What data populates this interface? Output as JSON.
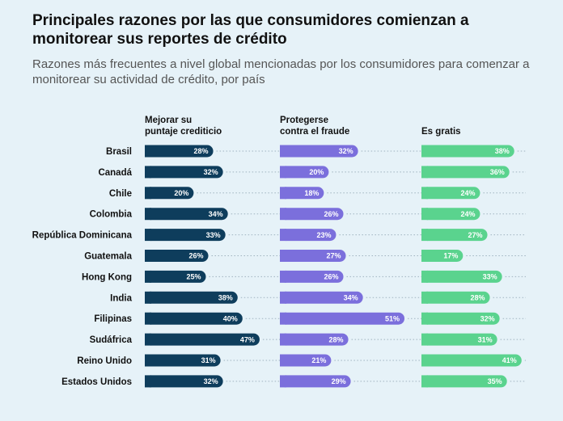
{
  "header": {
    "title": "Principales razones por las que consumidores comienzan a monitorear sus reportes de crédito",
    "subtitle": "Razones más frecuentes a nivel global mencionadas por los consumidores para comenzar a monitorear su actividad de crédito, por país"
  },
  "chart_data": {
    "type": "bar",
    "orientation": "horizontal",
    "title": "Principales razones por las que consumidores comienzan a monitorear sus reportes de crédito",
    "subtitle": "Razones más frecuentes a nivel global mencionadas por los consumidores para comenzar a monitorear su actividad de crédito, por país",
    "categories": [
      "Brasil",
      "Canadá",
      "Chile",
      "Colombia",
      "República Dominicana",
      "Guatemala",
      "Hong Kong",
      "India",
      "Filipinas",
      "Sudáfrica",
      "Reino Unido",
      "Estados Unidos"
    ],
    "unit": "%",
    "grid": false,
    "series": [
      {
        "name": "Mejorar su puntaje crediticio",
        "color": "#0e3d5c",
        "values": [
          28,
          32,
          20,
          34,
          33,
          26,
          25,
          38,
          40,
          47,
          31,
          32
        ]
      },
      {
        "name": "Protegerse contra el fraude",
        "color": "#7b6fdc",
        "values": [
          32,
          20,
          18,
          26,
          23,
          27,
          26,
          34,
          51,
          28,
          21,
          29
        ]
      },
      {
        "name": "Es gratis",
        "color": "#5ad38e",
        "values": [
          38,
          36,
          24,
          24,
          27,
          17,
          33,
          28,
          32,
          31,
          41,
          35
        ]
      }
    ]
  },
  "columns": [
    {
      "line1": "Mejorar su",
      "line2": "puntaje crediticio"
    },
    {
      "line1": "Protegerse",
      "line2": "contra el fraude"
    },
    {
      "line1": "Es gratis",
      "line2": ""
    }
  ]
}
